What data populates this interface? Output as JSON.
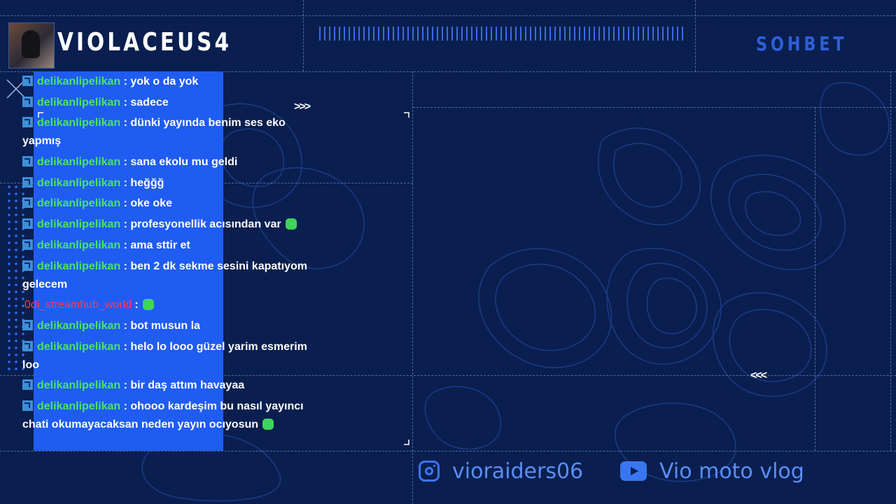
{
  "channel": {
    "name": "VIOLACEUS4",
    "panel_title": "SOHBET"
  },
  "chat": {
    "messages": [
      {
        "user": "delikanlipelikan",
        "text": ": yok o da yok",
        "badge": true,
        "emote": false,
        "alt": false
      },
      {
        "user": "delikanlipelikan",
        "text": ": sadece",
        "badge": true,
        "emote": false,
        "alt": false
      },
      {
        "user": "delikanlipelikan",
        "text": ": dünki yayında benim ses eko yapmış",
        "badge": true,
        "emote": false,
        "alt": false
      },
      {
        "user": "delikanlipelikan",
        "text": ": sana ekolu mu geldi",
        "badge": true,
        "emote": false,
        "alt": false
      },
      {
        "user": "delikanlipelikan",
        "text": ": heğğğ",
        "badge": true,
        "emote": false,
        "alt": false
      },
      {
        "user": "delikanlipelikan",
        "text": ": oke oke",
        "badge": true,
        "emote": false,
        "alt": false
      },
      {
        "user": "delikanlipelikan",
        "text": ": profesyonellik acısından var",
        "badge": true,
        "emote": true,
        "alt": false
      },
      {
        "user": "delikanlipelikan",
        "text": ": ama sttir et",
        "badge": true,
        "emote": false,
        "alt": false
      },
      {
        "user": "delikanlipelikan",
        "text": ": ben 2 dk sekme sesini kapatıyom gelecem",
        "badge": true,
        "emote": false,
        "alt": false
      },
      {
        "user": "0di_streamhub_world",
        "text": ":",
        "badge": false,
        "emote": true,
        "alt": true
      },
      {
        "user": "delikanlipelikan",
        "text": ": bot musun la",
        "badge": true,
        "emote": false,
        "alt": false
      },
      {
        "user": "delikanlipelikan",
        "text": ": helo lo looo güzel yarim esmerim loo",
        "badge": true,
        "emote": false,
        "alt": false
      },
      {
        "user": "delikanlipelikan",
        "text": ": bir daş attım havayaa",
        "badge": true,
        "emote": false,
        "alt": false
      },
      {
        "user": "delikanlipelikan",
        "text": ": ohooo kardeşim bu nasıl yayıncı chati okumayacaksan neden yayın ocıyosun",
        "badge": true,
        "emote": true,
        "alt": false
      }
    ]
  },
  "socials": {
    "instagram": "vioraiders06",
    "youtube": "Vio moto vlog"
  },
  "icons": {
    "instagram": "instagram-icon",
    "youtube": "youtube-icon",
    "badge": "moderator-badge-icon",
    "emote": "emote-icon"
  },
  "colors": {
    "background": "#0a1f4f",
    "panel_blue": "#1f5cf2",
    "username_green": "#49e36a",
    "username_red": "#ff3a4a",
    "accent": "#3a76f0"
  }
}
